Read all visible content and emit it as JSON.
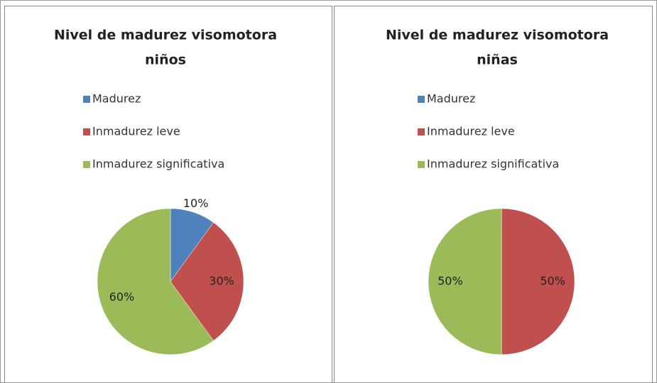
{
  "chart_data": [
    {
      "type": "pie",
      "title": [
        "Nivel de madurez visomotora",
        "niños"
      ],
      "categories": [
        "Madurez",
        "Inmadurez leve",
        "Inmadurez significativa"
      ],
      "values": [
        10,
        30,
        60
      ],
      "value_labels": [
        "10%",
        "30%",
        "60%"
      ],
      "colors": [
        "#4f81bd",
        "#c0504d",
        "#9bbb59"
      ],
      "legend": "top"
    },
    {
      "type": "pie",
      "title": [
        "Nivel de madurez visomotora",
        "niñas"
      ],
      "categories": [
        "Madurez",
        "Inmadurez leve",
        "Inmadurez significativa"
      ],
      "values": [
        0,
        50,
        50
      ],
      "value_labels": [
        null,
        "50%",
        "50%"
      ],
      "colors": [
        "#4f81bd",
        "#c0504d",
        "#9bbb59"
      ],
      "legend": "top"
    }
  ]
}
